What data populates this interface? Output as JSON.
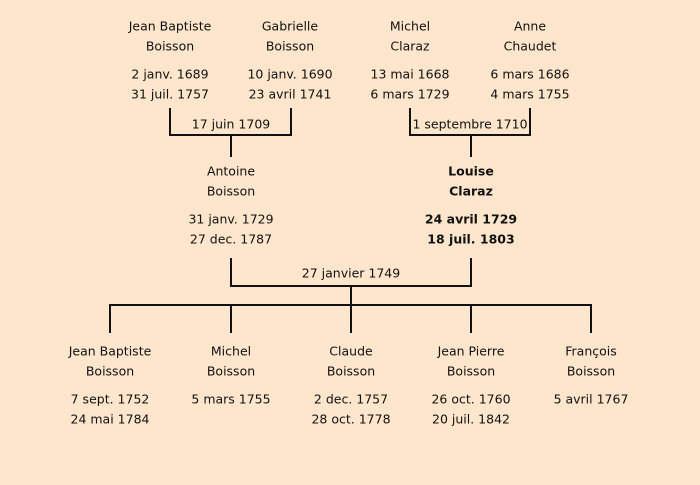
{
  "grandparents": [
    {
      "first": "Jean Baptiste",
      "last": "Boisson",
      "birth": "2 janv. 1689",
      "death": "31 juil. 1757"
    },
    {
      "first": "Gabrielle",
      "last": "Boisson",
      "birth": "10 janv. 1690",
      "death": "23 avril 1741"
    },
    {
      "first": "Michel",
      "last": "Claraz",
      "birth": "13 mai 1668",
      "death": "6 mars 1729"
    },
    {
      "first": "Anne",
      "last": "Chaudet",
      "birth": "6 mars 1686",
      "death": "4 mars 1755"
    }
  ],
  "grandparent_marriages": [
    "17 juin 1709",
    "1 septembre 1710"
  ],
  "parents": [
    {
      "first": "Antoine",
      "last": "Boisson",
      "birth": "31 janv. 1729",
      "death": "27 dec. 1787"
    },
    {
      "first": "Louise",
      "last": "Claraz",
      "birth": "24 avril 1729",
      "death": "18 juil. 1803"
    }
  ],
  "parents_marriage": "27 janvier 1749",
  "children": [
    {
      "first": "Jean Baptiste",
      "last": "Boisson",
      "birth": "7 sept. 1752",
      "death": "24 mai 1784"
    },
    {
      "first": "Michel",
      "last": "Boisson",
      "birth": "5 mars 1755"
    },
    {
      "first": "Claude",
      "last": "Boisson",
      "birth": "2 dec. 1757",
      "death": "28 oct. 1778"
    },
    {
      "first": "Jean Pierre",
      "last": "Boisson",
      "birth": "26 oct. 1760",
      "death": "20 juil. 1842"
    },
    {
      "first": "François",
      "last": "Boisson",
      "birth": "5 avril 1767"
    }
  ]
}
